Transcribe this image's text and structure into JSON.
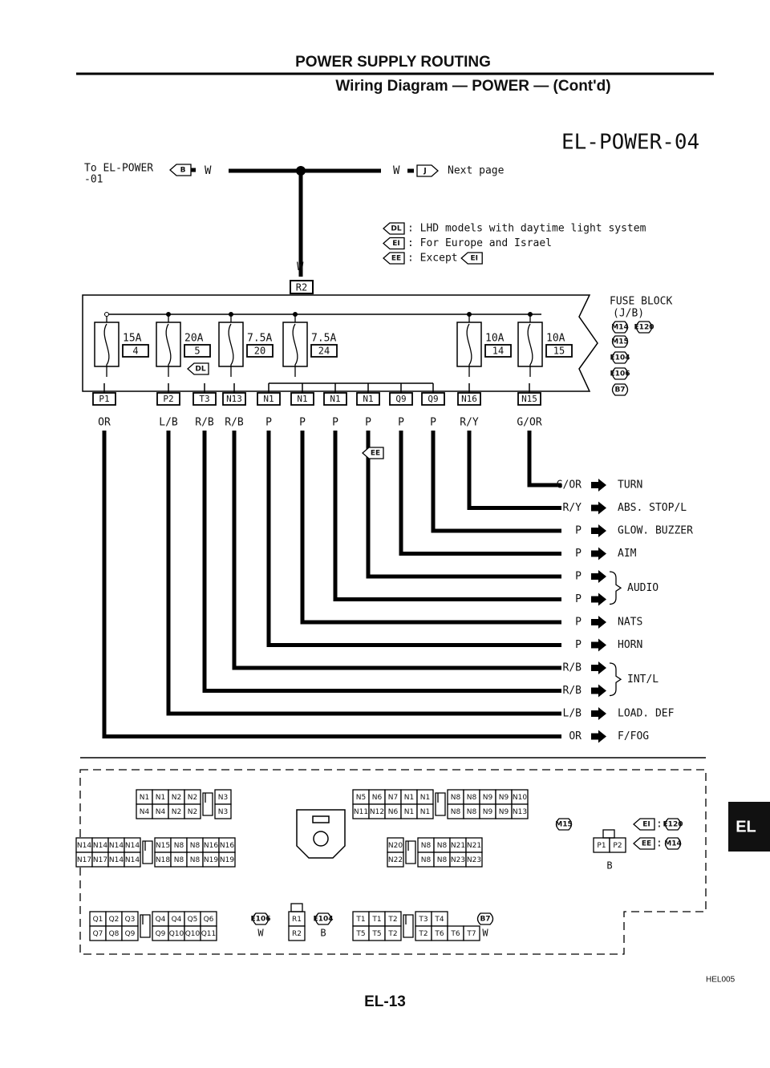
{
  "header": {
    "title": "POWER SUPPLY ROUTING",
    "subtitle": "Wiring Diagram — POWER — (Cont'd)"
  },
  "diagram_id": "EL-POWER-04",
  "source": {
    "lines": [
      "To EL-POWER",
      "-01"
    ],
    "connector": "B",
    "wire": "W"
  },
  "next": {
    "wire": "W",
    "connector": "J",
    "text": "Next page"
  },
  "notes": [
    {
      "code": "DL",
      "text": ": LHD models with daytime light system"
    },
    {
      "code": "EI",
      "text": ": For Europe and Israel"
    },
    {
      "code": "EE",
      "text": ": Except",
      "ref": "EI"
    }
  ],
  "main": {
    "wire": "W",
    "connector": "R2"
  },
  "fuse_block": {
    "label": [
      "FUSE BLOCK",
      "(J/B)"
    ],
    "connectors": [
      "M14",
      "E120",
      "M15",
      "E104",
      "E106",
      "B7"
    ]
  },
  "fuses": [
    {
      "amp": "15A",
      "num": "4"
    },
    {
      "amp": "20A",
      "num": "5"
    },
    {
      "amp": "7.5A",
      "num": "20"
    },
    {
      "amp": "7.5A",
      "num": "24"
    },
    {
      "amp": "10A",
      "num": "14"
    },
    {
      "amp": "10A",
      "num": "15"
    }
  ],
  "fuse_option": "DL",
  "terminals": [
    {
      "id": "P1",
      "color": "OR"
    },
    {
      "id": "P2",
      "color": "L/B"
    },
    {
      "id": "T3",
      "color": "R/B"
    },
    {
      "id": "N13",
      "color": "R/B"
    },
    {
      "id": "N1",
      "color": "P"
    },
    {
      "id": "N1",
      "color": "P"
    },
    {
      "id": "N1",
      "color": "P"
    },
    {
      "id": "N1",
      "color": "P"
    },
    {
      "id": "Q9",
      "color": "P"
    },
    {
      "id": "Q9",
      "color": "P"
    },
    {
      "id": "N16",
      "color": "R/Y"
    },
    {
      "id": "N15",
      "color": "G/OR"
    }
  ],
  "branch_option": "EE",
  "outputs": [
    {
      "colors": [
        "G/OR"
      ],
      "dest": "TURN"
    },
    {
      "colors": [
        "R/Y"
      ],
      "dest": "ABS. STOP/L"
    },
    {
      "colors": [
        "P"
      ],
      "dest": "GLOW. BUZZER"
    },
    {
      "colors": [
        "P"
      ],
      "dest": "AIM"
    },
    {
      "colors": [
        "P",
        "P"
      ],
      "dest": "AUDIO"
    },
    {
      "colors": [
        "P"
      ],
      "dest": "NATS"
    },
    {
      "colors": [
        "P"
      ],
      "dest": "HORN"
    },
    {
      "colors": [
        "R/B",
        "R/B"
      ],
      "dest": "INT/L"
    },
    {
      "colors": [
        "L/B"
      ],
      "dest": "LOAD. DEF"
    },
    {
      "colors": [
        "OR"
      ],
      "dest": "F/FOG"
    }
  ],
  "connectors": [
    {
      "left": [
        [
          "N1",
          "N1",
          "N2",
          "N2"
        ],
        [
          "N4",
          "N4",
          "N2",
          "N2"
        ]
      ],
      "right": [
        [
          "N3"
        ],
        [
          "N3"
        ]
      ]
    },
    {
      "left": [
        [
          "N14",
          "N14",
          "N14",
          "N14"
        ],
        [
          "N17",
          "N17",
          "N14",
          "N14"
        ]
      ],
      "right": [
        [
          "N15",
          "N8",
          "N8",
          "N16",
          "N16"
        ],
        [
          "N18",
          "N8",
          "N8",
          "N19",
          "N19"
        ]
      ]
    },
    {
      "left": [
        [
          "N5",
          "N6",
          "N7",
          "N1",
          "N1"
        ],
        [
          "N11",
          "N12",
          "N6",
          "N1",
          "N1"
        ]
      ],
      "right": [
        [
          "N8",
          "N8",
          "N9",
          "N9",
          "N10"
        ],
        [
          "N8",
          "N8",
          "N9",
          "N9",
          "N13"
        ]
      ]
    },
    {
      "left": [
        [
          "N20"
        ],
        [
          "N22"
        ]
      ],
      "right": [
        [
          "N8",
          "N8",
          "N21",
          "N21"
        ],
        [
          "N8",
          "N8",
          "N23",
          "N23"
        ]
      ]
    },
    {
      "left": [
        [
          "Q1",
          "Q2",
          "Q3"
        ],
        [
          "Q7",
          "Q8",
          "Q9"
        ]
      ],
      "right": [
        [
          "Q4",
          "Q4",
          "Q5",
          "Q6"
        ],
        [
          "Q9",
          "Q10",
          "Q10",
          "Q11"
        ]
      ]
    },
    {
      "left": [
        [
          "R1"
        ],
        [
          "R2"
        ]
      ]
    },
    {
      "left": [
        [
          "T1",
          "T1",
          "T2"
        ],
        [
          "T5",
          "T5",
          "T2"
        ]
      ],
      "right": [
        [
          "T3",
          "T4"
        ],
        [
          "T2",
          "T6",
          "T6",
          "T7"
        ]
      ]
    },
    {
      "left": [
        [
          "P1",
          "P2"
        ]
      ]
    }
  ],
  "connector_refs": [
    {
      "code": "M15"
    },
    {
      "code": "E106",
      "wire": "W"
    },
    {
      "code": "E104",
      "wire": "B"
    },
    {
      "code": "B7",
      "wire": "W"
    }
  ],
  "p_wire": "B",
  "p_notes": [
    {
      "code": "EI",
      "sep": ":",
      "conn": "E120"
    },
    {
      "code": "EE",
      "sep": ":",
      "conn": "M14"
    }
  ],
  "figure_code": "HEL005",
  "page_number": "EL-13",
  "section_tab": "EL"
}
